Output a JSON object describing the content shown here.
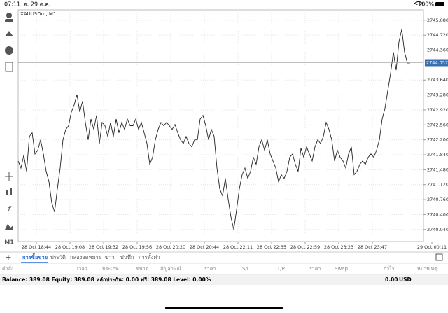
{
  "status_bar": {
    "time": "07:11",
    "date": "อ. 29 ต.ค.",
    "battery": "100%"
  },
  "toolbar": {
    "timeframe": "M1"
  },
  "chart_data": {
    "type": "line",
    "title": "XAUUSDm, M1",
    "color": "#222222",
    "grid": true,
    "current_price": 2744.057,
    "current_price_color": "#3a6fb0",
    "values": [
      2741.69,
      2741.52,
      2741.83,
      2741.44,
      2742.28,
      2742.37,
      2741.86,
      2741.95,
      2742.2,
      2741.86,
      2741.44,
      2741.19,
      2740.68,
      2740.46,
      2741.02,
      2741.52,
      2742.2,
      2742.45,
      2742.54,
      2742.87,
      2743.04,
      2743.29,
      2742.87,
      2743.13,
      2742.62,
      2742.2,
      2742.7,
      2742.45,
      2742.79,
      2742.11,
      2742.62,
      2742.54,
      2742.28,
      2742.62,
      2742.28,
      2742.7,
      2742.37,
      2742.62,
      2742.45,
      2742.7,
      2742.54,
      2742.54,
      2742.7,
      2742.45,
      2742.62,
      2742.37,
      2742.11,
      2741.61,
      2741.78,
      2742.2,
      2742.45,
      2742.62,
      2742.54,
      2742.62,
      2742.54,
      2742.45,
      2742.57,
      2742.37,
      2742.2,
      2742.11,
      2742.28,
      2742.11,
      2742.03,
      2742.2,
      2742.2,
      2742.7,
      2742.79,
      2742.54,
      2742.2,
      2742.45,
      2742.28,
      2741.52,
      2741.02,
      2740.85,
      2741.27,
      2740.77,
      2740.34,
      2740.04,
      2740.51,
      2741.02,
      2741.36,
      2741.52,
      2741.27,
      2741.44,
      2741.78,
      2741.61,
      2742.03,
      2742.2,
      2741.95,
      2742.2,
      2741.86,
      2741.69,
      2741.52,
      2741.19,
      2741.36,
      2741.27,
      2741.44,
      2741.78,
      2741.86,
      2741.61,
      2741.44,
      2742.0,
      2741.78,
      2742.03,
      2741.86,
      2741.69,
      2742.03,
      2742.2,
      2742.11,
      2742.28,
      2742.62,
      2742.45,
      2742.2,
      2741.69,
      2741.95,
      2741.78,
      2741.69,
      2741.52,
      2741.86,
      2742.03,
      2741.36,
      2741.44,
      2741.61,
      2741.69,
      2741.61,
      2741.78,
      2741.86,
      2741.78,
      2741.95,
      2742.2,
      2742.7,
      2742.96,
      2743.38,
      2743.8,
      2744.31,
      2743.88,
      2744.56,
      2744.86,
      2744.31,
      2744.05,
      2744.05
    ],
    "xlim": [
      0,
      148
    ],
    "xticks": [
      {
        "value": 6.5,
        "label": "28 Oct 18:44"
      },
      {
        "value": 18.5,
        "label": "28 Oct 19:08"
      },
      {
        "value": 30.5,
        "label": "28 Oct 19:32"
      },
      {
        "value": 42.5,
        "label": "28 Oct 19:56"
      },
      {
        "value": 54.5,
        "label": "28 Oct 20:20"
      },
      {
        "value": 66.5,
        "label": "28 Oct 20:44"
      },
      {
        "value": 78.5,
        "label": "28 Oct 22:11"
      },
      {
        "value": 90.5,
        "label": "28 Oct 22:35"
      },
      {
        "value": 102.5,
        "label": "28 Oct 22:59"
      },
      {
        "value": 114.5,
        "label": "28 Oct 23:23"
      },
      {
        "value": 126.5,
        "label": "28 Oct 23:47"
      },
      {
        "value": 147.75,
        "label": "29 Oct 00:11"
      }
    ],
    "ylim": [
      2739.75,
      2745.33
    ],
    "yticks": [
      {
        "value": 2740.04,
        "label": "2740.040"
      },
      {
        "value": 2740.4,
        "label": "2740.400"
      },
      {
        "value": 2740.76,
        "label": "2740.760"
      },
      {
        "value": 2741.12,
        "label": "2741.120"
      },
      {
        "value": 2741.48,
        "label": "2741.480"
      },
      {
        "value": 2741.84,
        "label": "2741.840"
      },
      {
        "value": 2742.2,
        "label": "2742.200"
      },
      {
        "value": 2742.56,
        "label": "2742.560"
      },
      {
        "value": 2742.92,
        "label": "2742.920"
      },
      {
        "value": 2743.28,
        "label": "2743.280"
      },
      {
        "value": 2743.64,
        "label": "2743.640"
      },
      {
        "value": 2744.36,
        "label": "2744.360"
      },
      {
        "value": 2744.72,
        "label": "2744.720"
      },
      {
        "value": 2745.08,
        "label": "2745.080"
      }
    ]
  },
  "tabs": [
    "การซื้อขาย",
    "ประวัติ",
    "กล่องจดหมาย",
    "ข่าว",
    "บันทึก",
    "การตั้งค่า"
  ],
  "table": {
    "headers": [
      "คำสั่ง",
      "เวลา",
      "ประเภท",
      "ขนาด",
      "สัญลักษณ์",
      "ราคา",
      "S/L",
      "T/P",
      "ราคา",
      "Swap",
      "กำไร",
      "หมายเหตุ"
    ]
  },
  "account": {
    "summary": "Balance: 389.08 Equity: 389.08 หลักประกัน: 0.00 ฟรี: 389.08 Level: 0.00%",
    "profit": "0.00",
    "currency": "USD"
  }
}
